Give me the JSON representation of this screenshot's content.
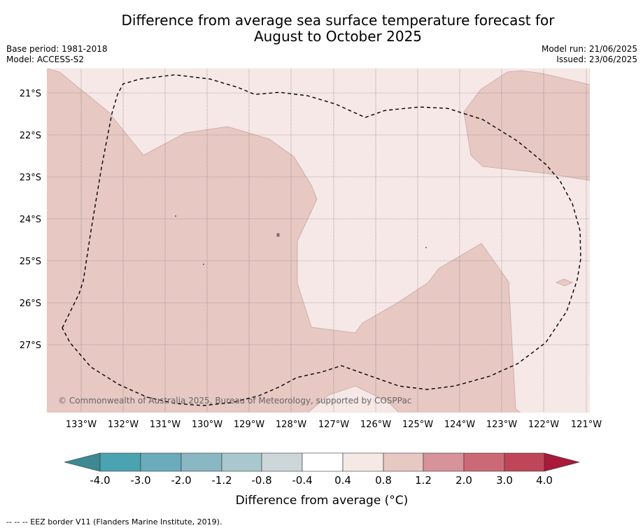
{
  "header": {
    "title_line1": "Difference from average sea surface temperature forecast for",
    "title_line2": "August to October 2025",
    "base_period": "Base period: 1981-2018",
    "model": "Model: ACCESS-S2",
    "model_run": "Model run: 21/06/2025",
    "issued": "Issued: 23/06/2025"
  },
  "map": {
    "lat_labels": [
      "21°S",
      "22°S",
      "23°S",
      "24°S",
      "25°S",
      "26°S",
      "27°S"
    ],
    "lon_labels": [
      "133°W",
      "132°W",
      "131°W",
      "130°W",
      "129°W",
      "128°W",
      "127°W",
      "126°W",
      "125°W",
      "124°W",
      "123°W",
      "122°W",
      "121°W"
    ],
    "copyright": "© Commonwealth of Australia 2025, Bureau of Meteorology, supported by COSPPac",
    "colors": {
      "band_0_4_to_0_8": "#f5e8e7",
      "band_0_8_to_1_2": "#e7c8c3",
      "eez_border": "#000000"
    }
  },
  "colorbar": {
    "title": "Difference from average (°C)",
    "tick_labels": [
      "-4.0",
      "-3.0",
      "-2.0",
      "-1.2",
      "-0.8",
      "-0.4",
      "0.4",
      "0.8",
      "1.2",
      "2.0",
      "3.0",
      "4.0"
    ],
    "colors": [
      "#3d8994",
      "#4ba3b2",
      "#6aacbb",
      "#8ab7c4",
      "#a9c8cd",
      "#cdd7d9",
      "#ffffff",
      "#f5e8e7",
      "#e7c8c3",
      "#d8929a",
      "#cb6a76",
      "#bf4658",
      "#a8193a"
    ]
  },
  "footer": {
    "legend_text": "--  --  -- EEZ border V11 (Flanders Marine Institute, 2019)."
  }
}
